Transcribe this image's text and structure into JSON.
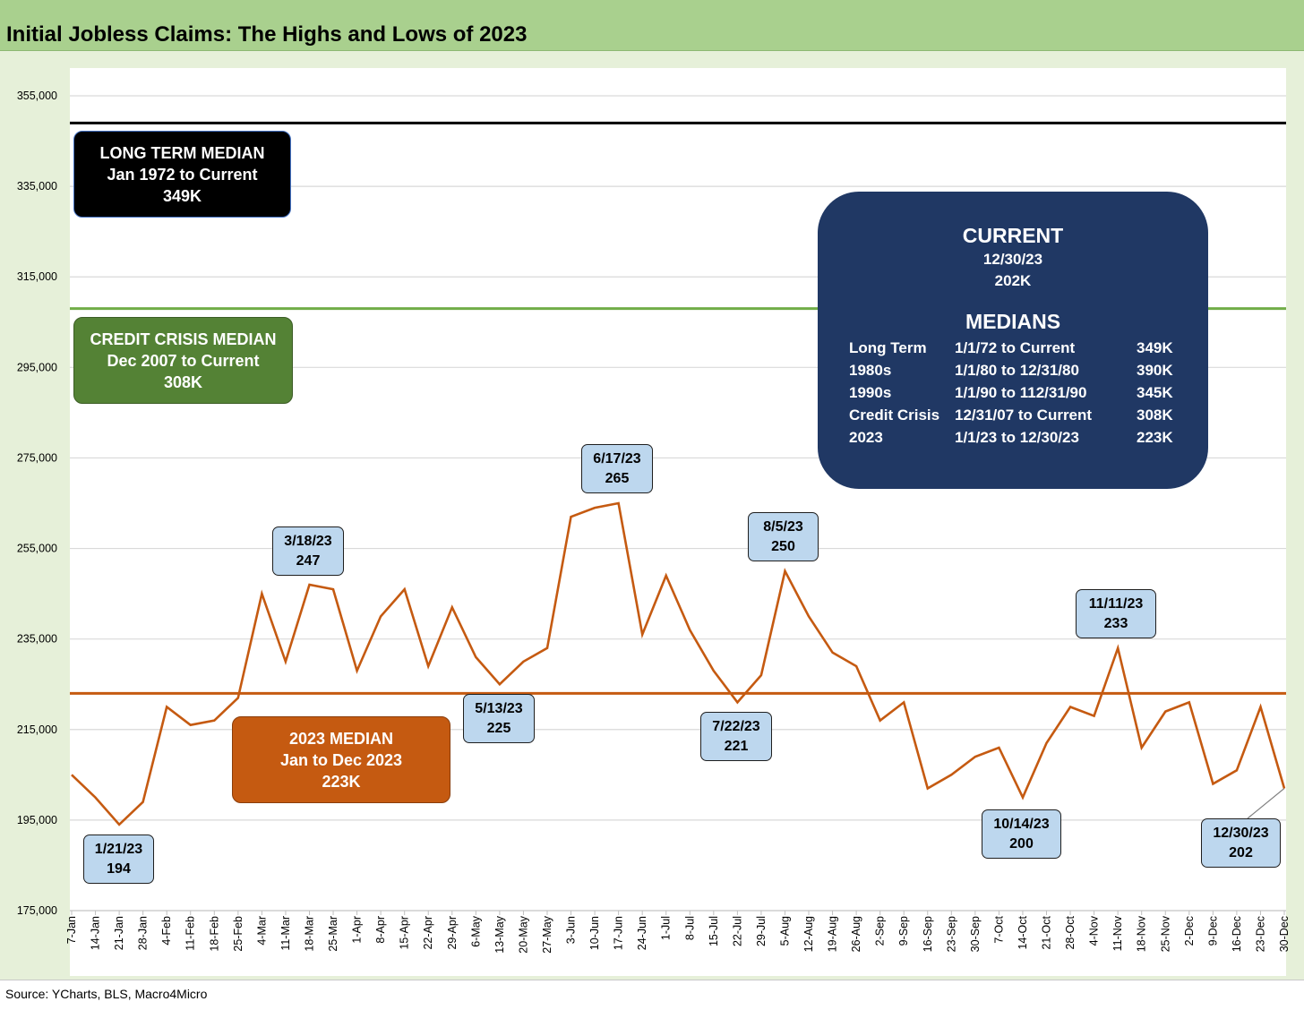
{
  "title": "Initial Jobless Claims: The Highs and Lows of 2023",
  "source": "Source: YCharts, BLS, Macro4Micro",
  "colors": {
    "title_bar": "#a9d08e",
    "line": "#c55a11",
    "long_term_median_line": "#000000",
    "credit_crisis_median_line": "#70ad47",
    "median_2023_line": "#c55a11",
    "current_box": "#203864",
    "callout_fill": "#bdd7ee"
  },
  "chart_data": {
    "type": "line",
    "title": "Initial Jobless Claims: The Highs and Lows of 2023",
    "xlabel": "",
    "ylabel": "",
    "ylim": [
      175000,
      355000
    ],
    "y_ticks": [
      175000,
      195000,
      215000,
      235000,
      255000,
      275000,
      295000,
      315000,
      335000,
      355000
    ],
    "y_tick_labels": [
      "175,000",
      "195,000",
      "215,000",
      "235,000",
      "255,000",
      "275,000",
      "295,000",
      "315,000",
      "335,000",
      "355,000"
    ],
    "grid": true,
    "categories": [
      "7-Jan",
      "14-Jan",
      "21-Jan",
      "28-Jan",
      "4-Feb",
      "11-Feb",
      "18-Feb",
      "25-Feb",
      "4-Mar",
      "11-Mar",
      "18-Mar",
      "25-Mar",
      "1-Apr",
      "8-Apr",
      "15-Apr",
      "22-Apr",
      "29-Apr",
      "6-May",
      "13-May",
      "20-May",
      "27-May",
      "3-Jun",
      "10-Jun",
      "17-Jun",
      "24-Jun",
      "1-Jul",
      "8-Jul",
      "15-Jul",
      "22-Jul",
      "29-Jul",
      "5-Aug",
      "12-Aug",
      "19-Aug",
      "26-Aug",
      "2-Sep",
      "9-Sep",
      "16-Sep",
      "23-Sep",
      "30-Sep",
      "7-Oct",
      "14-Oct",
      "21-Oct",
      "28-Oct",
      "4-Nov",
      "11-Nov",
      "18-Nov",
      "25-Nov",
      "2-Dec",
      "9-Dec",
      "16-Dec",
      "23-Dec",
      "30-Dec"
    ],
    "series": [
      {
        "values": [
          205000,
          200000,
          194000,
          199000,
          220000,
          216000,
          217000,
          222000,
          245000,
          230000,
          247000,
          246000,
          228000,
          240000,
          246000,
          229000,
          242000,
          231000,
          225000,
          230000,
          233000,
          262000,
          264000,
          265000,
          236000,
          249000,
          237000,
          228000,
          221000,
          227000,
          250000,
          240000,
          232000,
          229000,
          217000,
          221000,
          202000,
          205000,
          209000,
          211000,
          200000,
          212000,
          220000,
          218000,
          233000,
          211000,
          219000,
          221000,
          203000,
          206000,
          220000,
          202000
        ]
      }
    ],
    "reference_lines": [
      {
        "value": 349000
      },
      {
        "value": 308000
      },
      {
        "value": 223000
      }
    ],
    "annotations": [
      {
        "date": "1/21/23",
        "value": "194",
        "category": "21-Jan"
      },
      {
        "date": "3/18/23",
        "value": "247",
        "category": "18-Mar"
      },
      {
        "date": "5/13/23",
        "value": "225",
        "category": "13-May"
      },
      {
        "date": "6/17/23",
        "value": "265",
        "category": "17-Jun"
      },
      {
        "date": "7/22/23",
        "value": "221",
        "category": "22-Jul"
      },
      {
        "date": "8/5/23",
        "value": "250",
        "category": "5-Aug"
      },
      {
        "date": "10/14/23",
        "value": "200",
        "category": "14-Oct"
      },
      {
        "date": "11/11/23",
        "value": "233",
        "category": "11-Nov"
      },
      {
        "date": "12/30/23",
        "value": "202",
        "category": "30-Dec"
      }
    ]
  },
  "boxes": {
    "long_term": {
      "line1": "LONG TERM MEDIAN",
      "line2": "Jan 1972 to Current",
      "line3": "349K"
    },
    "credit_crisis": {
      "line1": "CREDIT CRISIS MEDIAN",
      "line2": "Dec 2007 to Current",
      "line3": "308K"
    },
    "median_2023": {
      "line1": "2023 MEDIAN",
      "line2": "Jan to Dec 2023",
      "line3": "223K"
    },
    "current": {
      "heading": "CURRENT",
      "date": "12/30/23",
      "value": "202K",
      "medians_heading": "MEDIANS",
      "rows": [
        {
          "label": "Long Term",
          "range": "1/1/72 to Current",
          "value": "349K"
        },
        {
          "label": "1980s",
          "range": "1/1/80 to 12/31/80",
          "value": "390K"
        },
        {
          "label": "1990s",
          "range": "1/1/90 to 112/31/90",
          "value": "345K"
        },
        {
          "label": "Credit Crisis",
          "range": "12/31/07 to Current",
          "value": "308K"
        },
        {
          "label": "2023",
          "range": "1/1/23 to 12/30/23",
          "value": "223K"
        }
      ]
    }
  }
}
